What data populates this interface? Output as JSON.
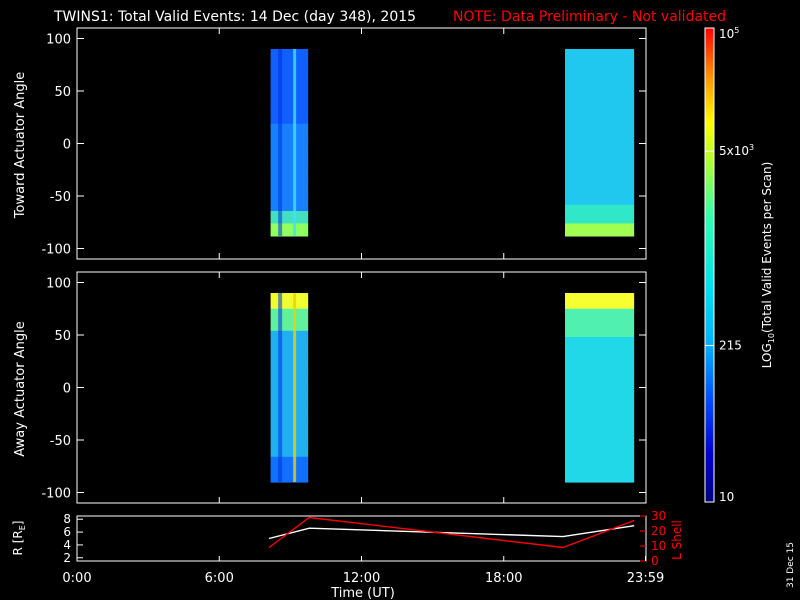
{
  "title": {
    "main": "TWINS1: Total Valid Events: 14 Dec (day 348), 2015",
    "note": "NOTE: Data Preliminary - Not validated",
    "note_color": "#ff0000"
  },
  "date_stamp": "31 Dec 15",
  "chart_data": [
    {
      "type": "heatmap",
      "ylabel": "Toward Actuator Angle",
      "ylim": [
        -110,
        110
      ],
      "yticks": [
        "100",
        "50",
        "0",
        "-50",
        "-100"
      ],
      "ytick_values": [
        100,
        50,
        0,
        -50,
        -100
      ],
      "xlim_hours": [
        0,
        24
      ],
      "data_extent_y": [
        -88,
        90
      ],
      "blocks": [
        {
          "start": "08:10",
          "end": "09:45",
          "dominant_level": "low (blue)"
        },
        {
          "start": "20:35",
          "end": "23:30",
          "dominant_level": "mid (cyan)"
        }
      ]
    },
    {
      "type": "heatmap",
      "ylabel": "Away Actuator Angle",
      "ylim": [
        -110,
        110
      ],
      "yticks": [
        "100",
        "50",
        "0",
        "-50",
        "-100"
      ],
      "ytick_values": [
        100,
        50,
        0,
        -50,
        -100
      ],
      "xlim_hours": [
        0,
        24
      ],
      "data_extent_y": [
        -90,
        90
      ],
      "blocks": [
        {
          "start": "08:10",
          "end": "09:45",
          "dominant_level": "mid with yellow top"
        },
        {
          "start": "20:35",
          "end": "23:30",
          "dominant_level": "mid with yellow top"
        }
      ]
    },
    {
      "type": "line",
      "ylabel_left": "R [R",
      "ylabel_left_sub": "E",
      "ylabel_left_end": "]",
      "ylabel_right": "L Shell",
      "right_axis_color": "#ff0000",
      "ylim_left": [
        1.5,
        8.5
      ],
      "yticks_left": [
        "2",
        "4",
        "6",
        "8"
      ],
      "yticks_left_values": [
        2,
        4,
        6,
        8
      ],
      "ylim_right": [
        0,
        30
      ],
      "yticks_right": [
        "0",
        "10",
        "20",
        "30"
      ],
      "yticks_right_values": [
        0,
        10,
        20,
        30
      ],
      "xlabel": "Time (UT)",
      "xticks": [
        "0:00",
        "6:00",
        "12:00",
        "18:00",
        "23:59"
      ],
      "xtick_hours": [
        0,
        6,
        12,
        18,
        23.98
      ],
      "series": [
        {
          "color": "#ffffff",
          "hours": [
            8.1,
            9.8,
            20.5,
            23.5
          ],
          "values": [
            5.0,
            6.6,
            5.3,
            7.0
          ]
        },
        {
          "color": "#ff0000",
          "hours": [
            8.1,
            9.8,
            20.5,
            23.5
          ],
          "values": [
            9,
            29,
            9,
            27
          ]
        }
      ]
    }
  ],
  "colorbar": {
    "label_prefix": "LOG",
    "label_sub": "10",
    "label_suffix": "(Total Valid Events per Scan)",
    "ticks": [
      {
        "base": "10",
        "exp": "5",
        "level": 1.0
      },
      {
        "base": "5x10",
        "exp": "3",
        "level": 0.74
      },
      {
        "base": "215",
        "exp": "",
        "level": 0.33
      },
      {
        "base": "10",
        "exp": "",
        "level": 0.0
      }
    ],
    "colors": [
      "#000080",
      "#0000cd",
      "#0040ff",
      "#0090ff",
      "#00d0ff",
      "#00e8e8",
      "#20ffb0",
      "#a0ff40",
      "#ffff00",
      "#ff8000",
      "#ff0000"
    ]
  }
}
